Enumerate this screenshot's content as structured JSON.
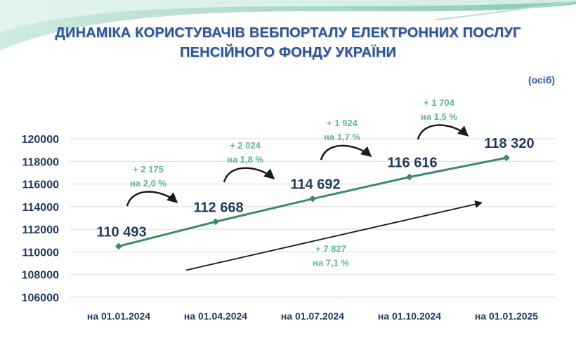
{
  "title_line1": "ДИНАМІКА КОРИСТУВАЧІВ ВЕБПОРТАЛУ ЕЛЕКТРОННИХ ПОСЛУГ",
  "title_line2": "ПЕНСІЙНОГО ФОНДУ УКРАЇНИ",
  "unit": "(осіб)",
  "colors": {
    "title": "#2a5599",
    "line": "#3d8a6e",
    "value_labels": "#1f3a5c",
    "axis_labels": "#1f3a5c",
    "change_labels": "#5cb88a",
    "arrows": "#1a1a1a",
    "header_wave": "#a9d8c6"
  },
  "chart_data": {
    "type": "line",
    "categories": [
      "на 01.01.2024",
      "на 01.04.2024",
      "на 01.07.2024",
      "на 01.10.2024",
      "на 01.01.2025"
    ],
    "values": [
      110493,
      112668,
      114692,
      116616,
      118320
    ],
    "value_labels": [
      "110 493",
      "112 668",
      "114 692",
      "116 616",
      "118 320"
    ],
    "ylim": [
      106000,
      120000
    ],
    "yticks": [
      "106000",
      "108000",
      "110000",
      "112000",
      "114000",
      "116000",
      "118000",
      "120000"
    ],
    "grid": true,
    "annotations": [
      {
        "amount": "+ 2 175",
        "percent": "на 2,0 %"
      },
      {
        "amount": "+ 2 024",
        "percent": "на 1,8 %"
      },
      {
        "amount": "+ 1 924",
        "percent": "на 1,7 %"
      },
      {
        "amount": "+ 1 704",
        "percent": "на 1,5 %"
      }
    ],
    "total_change": {
      "amount": "+ 7 827",
      "percent": "на 7,1 %"
    }
  }
}
